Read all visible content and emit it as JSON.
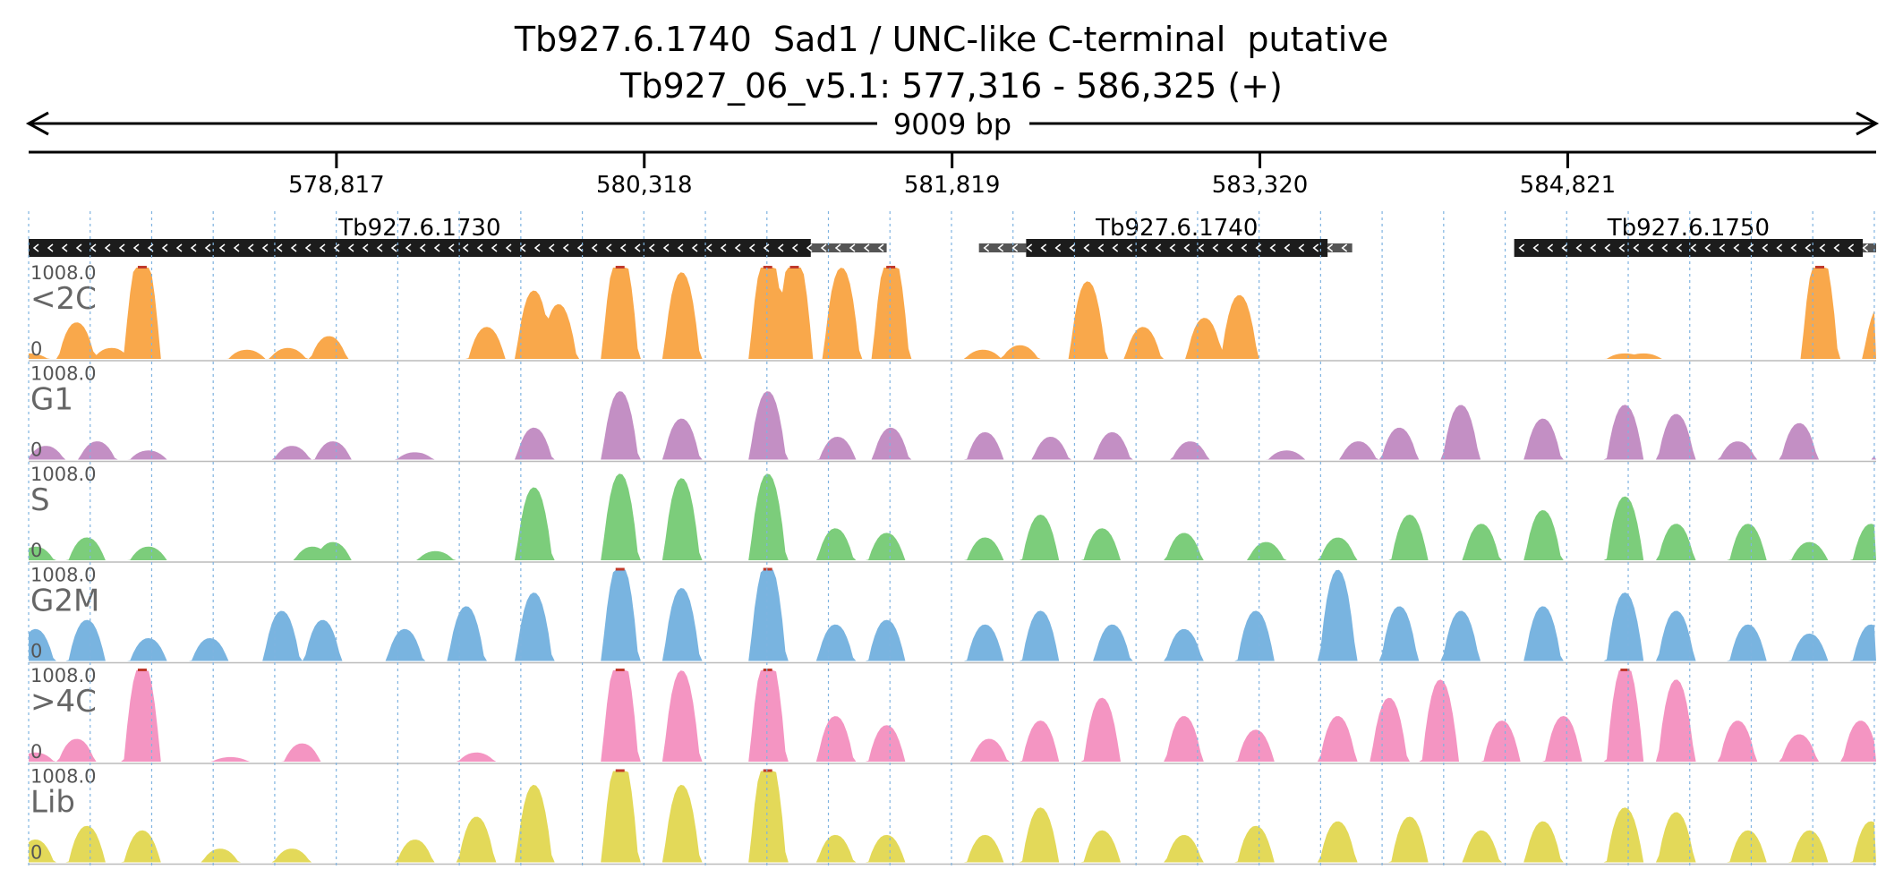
{
  "header": {
    "title": "Tb927.6.1740  Sad1 / UNC-like C-terminal  putative",
    "location": "Tb927_06_v5.1: 577,316 - 586,325 (+)"
  },
  "chart_data": {
    "type": "area",
    "region": {
      "chrom": "Tb927_06_v5.1",
      "start": 577316,
      "end": 586325,
      "strand": "+"
    },
    "span_label": "9009 bp",
    "ticks": [
      {
        "value": 578817,
        "label": "578,817"
      },
      {
        "value": 580318,
        "label": "580,318"
      },
      {
        "value": 581819,
        "label": "581,819"
      },
      {
        "value": 583320,
        "label": "583,320"
      },
      {
        "value": 584821,
        "label": "584,821"
      }
    ],
    "grid": true,
    "genes": [
      {
        "name": "Tb927.6.1730",
        "strand": "-",
        "cds_start": 577316,
        "cds_end": 581130,
        "utr_end": 581500
      },
      {
        "name": "Tb927.6.1740",
        "strand": "-",
        "cds_start": 582180,
        "cds_end": 583650,
        "utr_start": 581950,
        "utr_end": 583770
      },
      {
        "name": "Tb927.6.1750",
        "strand": "-",
        "cds_start": 584560,
        "cds_end": 586260,
        "utr_end": 586325
      }
    ],
    "ylim": [
      0,
      1008.0
    ],
    "y_max_label": "1008.0",
    "y_min_label": "0",
    "tracks": [
      {
        "name": "<2C",
        "color": "#f9a84b",
        "peaks": [
          [
            577320,
            0.06
          ],
          [
            577550,
            0.4
          ],
          [
            577720,
            0.12
          ],
          [
            577870,
            1.2
          ],
          [
            578380,
            0.1
          ],
          [
            578580,
            0.12
          ],
          [
            578780,
            0.25
          ],
          [
            579550,
            0.35
          ],
          [
            579780,
            0.75
          ],
          [
            579900,
            0.6
          ],
          [
            580200,
            1.2
          ],
          [
            580500,
            0.95
          ],
          [
            580920,
            1.2
          ],
          [
            581050,
            1.2
          ],
          [
            581280,
            1.0
          ],
          [
            581520,
            1.2
          ],
          [
            581970,
            0.1
          ],
          [
            582150,
            0.15
          ],
          [
            582480,
            0.85
          ],
          [
            582750,
            0.35
          ],
          [
            583050,
            0.45
          ],
          [
            583220,
            0.7
          ],
          [
            585100,
            0.06
          ],
          [
            585190,
            0.06
          ],
          [
            586050,
            1.2
          ],
          [
            586350,
            0.6
          ],
          [
            586580,
            1.2
          ]
        ]
      },
      {
        "name": "G1",
        "color": "#c38fc4",
        "peaks": [
          [
            577400,
            0.15
          ],
          [
            577650,
            0.2
          ],
          [
            577900,
            0.1
          ],
          [
            578600,
            0.15
          ],
          [
            578800,
            0.2
          ],
          [
            579200,
            0.08
          ],
          [
            579780,
            0.35
          ],
          [
            580200,
            0.75
          ],
          [
            580500,
            0.45
          ],
          [
            580920,
            0.75
          ],
          [
            581260,
            0.25
          ],
          [
            581520,
            0.35
          ],
          [
            581980,
            0.3
          ],
          [
            582300,
            0.25
          ],
          [
            582600,
            0.3
          ],
          [
            582980,
            0.2
          ],
          [
            583450,
            0.1
          ],
          [
            583800,
            0.2
          ],
          [
            584000,
            0.35
          ],
          [
            584300,
            0.6
          ],
          [
            584700,
            0.45
          ],
          [
            585100,
            0.6
          ],
          [
            585350,
            0.5
          ],
          [
            585650,
            0.2
          ],
          [
            585950,
            0.4
          ],
          [
            586400,
            0.3
          ]
        ]
      },
      {
        "name": "S",
        "color": "#7ccd7b",
        "peaks": [
          [
            577350,
            0.15
          ],
          [
            577600,
            0.25
          ],
          [
            577900,
            0.15
          ],
          [
            578700,
            0.15
          ],
          [
            578800,
            0.2
          ],
          [
            579300,
            0.1
          ],
          [
            579780,
            0.8
          ],
          [
            580200,
            0.95
          ],
          [
            580500,
            0.9
          ],
          [
            580920,
            0.95
          ],
          [
            581250,
            0.35
          ],
          [
            581500,
            0.3
          ],
          [
            581980,
            0.25
          ],
          [
            582250,
            0.5
          ],
          [
            582550,
            0.35
          ],
          [
            582950,
            0.3
          ],
          [
            583350,
            0.2
          ],
          [
            583700,
            0.25
          ],
          [
            584050,
            0.5
          ],
          [
            584400,
            0.4
          ],
          [
            584700,
            0.55
          ],
          [
            585100,
            0.7
          ],
          [
            585350,
            0.4
          ],
          [
            585700,
            0.4
          ],
          [
            586000,
            0.2
          ],
          [
            586300,
            0.4
          ],
          [
            586580,
            0.45
          ]
        ]
      },
      {
        "name": "G2M",
        "color": "#79b4e0",
        "peaks": [
          [
            577350,
            0.35
          ],
          [
            577600,
            0.45
          ],
          [
            577900,
            0.25
          ],
          [
            578200,
            0.25
          ],
          [
            578550,
            0.55
          ],
          [
            578750,
            0.45
          ],
          [
            579150,
            0.35
          ],
          [
            579450,
            0.6
          ],
          [
            579780,
            0.75
          ],
          [
            580200,
            1.1
          ],
          [
            580500,
            0.8
          ],
          [
            580920,
            1.1
          ],
          [
            581250,
            0.4
          ],
          [
            581500,
            0.45
          ],
          [
            581980,
            0.4
          ],
          [
            582250,
            0.55
          ],
          [
            582600,
            0.4
          ],
          [
            582950,
            0.35
          ],
          [
            583300,
            0.55
          ],
          [
            583700,
            1.0
          ],
          [
            584000,
            0.6
          ],
          [
            584300,
            0.55
          ],
          [
            584700,
            0.6
          ],
          [
            585100,
            0.75
          ],
          [
            585350,
            0.55
          ],
          [
            585700,
            0.4
          ],
          [
            586000,
            0.3
          ],
          [
            586300,
            0.4
          ],
          [
            586580,
            0.45
          ]
        ]
      },
      {
        "name": ">4C",
        "color": "#f495c2",
        "peaks": [
          [
            577350,
            0.1
          ],
          [
            577550,
            0.25
          ],
          [
            577870,
            1.1
          ],
          [
            578300,
            0.05
          ],
          [
            578650,
            0.2
          ],
          [
            579500,
            0.1
          ],
          [
            580200,
            1.2
          ],
          [
            580500,
            1.0
          ],
          [
            580920,
            1.2
          ],
          [
            581250,
            0.5
          ],
          [
            581500,
            0.4
          ],
          [
            582000,
            0.25
          ],
          [
            582250,
            0.45
          ],
          [
            582550,
            0.7
          ],
          [
            582950,
            0.5
          ],
          [
            583300,
            0.35
          ],
          [
            583700,
            0.5
          ],
          [
            583950,
            0.7
          ],
          [
            584200,
            0.9
          ],
          [
            584500,
            0.45
          ],
          [
            584800,
            0.5
          ],
          [
            585100,
            1.1
          ],
          [
            585350,
            0.9
          ],
          [
            585650,
            0.45
          ],
          [
            585950,
            0.3
          ],
          [
            586250,
            0.45
          ],
          [
            586580,
            0.55
          ]
        ]
      },
      {
        "name": "Lib",
        "color": "#e3d959",
        "peaks": [
          [
            577350,
            0.25
          ],
          [
            577600,
            0.4
          ],
          [
            577870,
            0.35
          ],
          [
            578250,
            0.15
          ],
          [
            578600,
            0.15
          ],
          [
            579200,
            0.25
          ],
          [
            579500,
            0.5
          ],
          [
            579780,
            0.85
          ],
          [
            580200,
            1.2
          ],
          [
            580500,
            0.85
          ],
          [
            580920,
            1.2
          ],
          [
            581250,
            0.3
          ],
          [
            581500,
            0.3
          ],
          [
            581980,
            0.3
          ],
          [
            582250,
            0.6
          ],
          [
            582550,
            0.35
          ],
          [
            582950,
            0.3
          ],
          [
            583300,
            0.4
          ],
          [
            583700,
            0.45
          ],
          [
            584050,
            0.5
          ],
          [
            584400,
            0.35
          ],
          [
            584700,
            0.45
          ],
          [
            585100,
            0.6
          ],
          [
            585350,
            0.55
          ],
          [
            585700,
            0.35
          ],
          [
            586000,
            0.35
          ],
          [
            586300,
            0.45
          ],
          [
            586580,
            0.6
          ]
        ]
      }
    ]
  }
}
